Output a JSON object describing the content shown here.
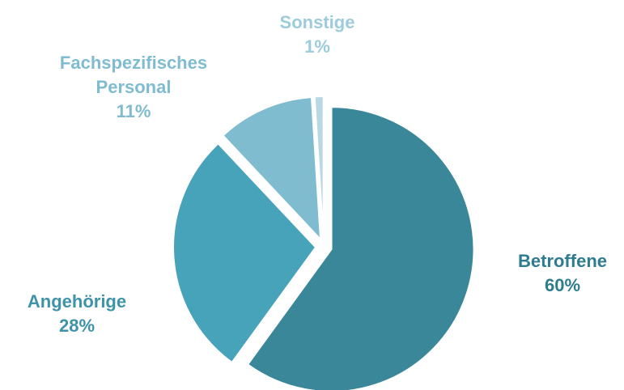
{
  "chart_data": {
    "type": "pie",
    "categories": [
      "Betroffene",
      "Angehörige",
      "Fachspezifisches Personal",
      "Sonstige"
    ],
    "values": [
      60,
      28,
      11,
      1
    ],
    "value_labels": [
      "60%",
      "28%",
      "11%",
      "1%"
    ],
    "colors": [
      "#3a8799",
      "#47a3ba",
      "#7fbcd0",
      "#b8d9e3"
    ]
  }
}
